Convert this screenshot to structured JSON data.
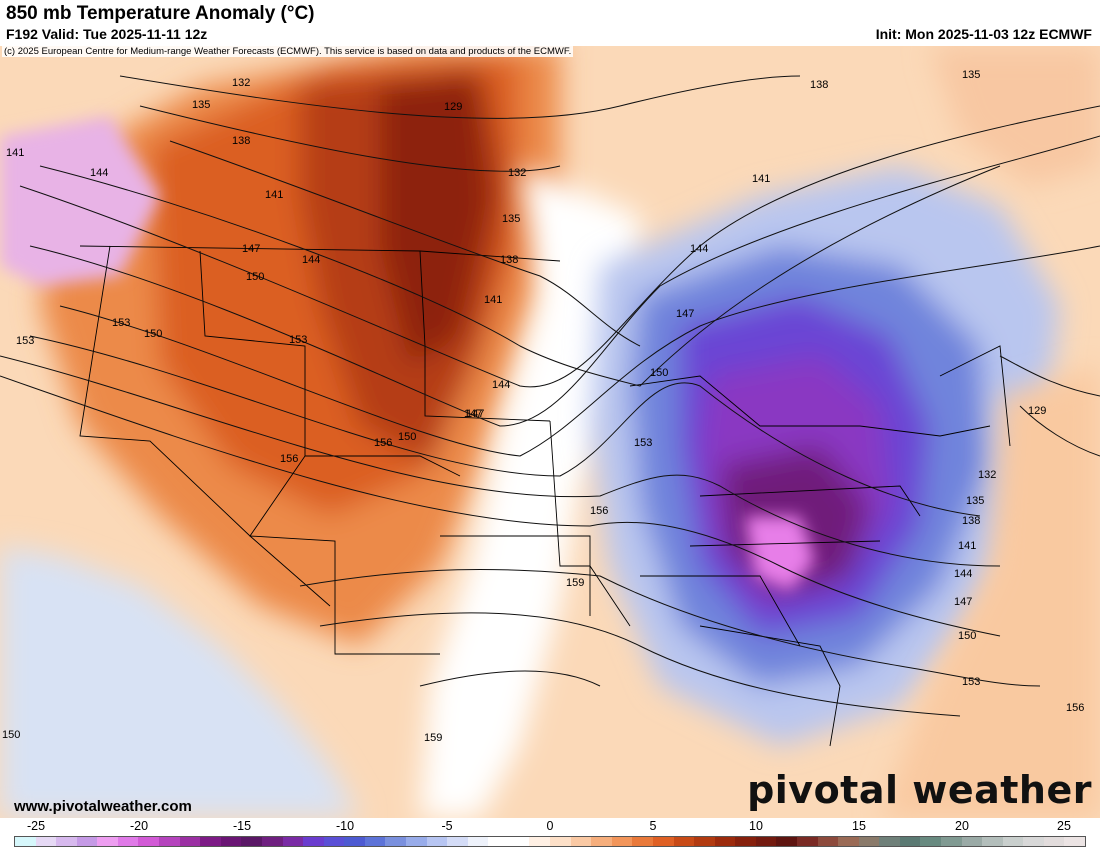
{
  "header": {
    "title": "850 mb Temperature Anomaly (°C)",
    "valid": "F192 Valid: Tue 2025-11-11 12z",
    "init": "Init: Mon 2025-11-03 12z ECMWF",
    "copyright": "(c) 2025 European Centre for Medium-range Weather Forecasts (ECMWF). This service is based on data and products of the ECMWF."
  },
  "footer": {
    "website": "www.pivotalweather.com",
    "brand": "pivotal weather"
  },
  "colorbar": {
    "tick_labels": [
      "-25",
      "-20",
      "-15",
      "-10",
      "-5",
      "0",
      "5",
      "10",
      "15",
      "20",
      "25"
    ],
    "colors": [
      "#d6f7fb",
      "#e6d9f5",
      "#d7b9ee",
      "#c59ae6",
      "#ee9ef1",
      "#e07ae8",
      "#d25ad6",
      "#b543bd",
      "#9b2fa3",
      "#7d1b86",
      "#6a1574",
      "#5a1766",
      "#6f1f80",
      "#7a2ba5",
      "#6a3ccf",
      "#5a4fd6",
      "#4d5ad2",
      "#5d73d8",
      "#7a90de",
      "#98acea",
      "#b7c5f2",
      "#d4dcf7",
      "#eef2fb",
      "#ffffff",
      "#ffffff",
      "#fff0e4",
      "#fde0c8",
      "#fac9a4",
      "#f6ae7c",
      "#f2955a",
      "#e9793a",
      "#df6024",
      "#c84a16",
      "#b23a10",
      "#9c2a0c",
      "#86200c",
      "#731a0f",
      "#5e1410",
      "#7a2a24",
      "#8d4a3c",
      "#9a6a55",
      "#8a7a6a",
      "#6f8079",
      "#5b7a73",
      "#688a80",
      "#809a92",
      "#9aaaa6",
      "#b3bebb",
      "#c9cfcd",
      "#d8d8d8",
      "#e2dcdc",
      "#ece4e4"
    ]
  },
  "map_labels": {
    "height_contours": [
      "129",
      "132",
      "135",
      "138",
      "141",
      "144",
      "147",
      "150",
      "153",
      "156",
      "159"
    ],
    "placed": [
      {
        "t": "132"
      },
      {
        "t": "135"
      },
      {
        "t": "138"
      },
      {
        "t": "141"
      },
      {
        "t": "144"
      },
      {
        "t": "129"
      },
      {
        "t": "132"
      },
      {
        "t": "135"
      },
      {
        "t": "138"
      },
      {
        "t": "141"
      },
      {
        "t": "147"
      },
      {
        "t": "150"
      },
      {
        "t": "144"
      },
      {
        "t": "153"
      },
      {
        "t": "153"
      },
      {
        "t": "141"
      },
      {
        "t": "147"
      },
      {
        "t": "150"
      },
      {
        "t": "156"
      },
      {
        "t": "150"
      },
      {
        "t": "156"
      },
      {
        "t": "153"
      },
      {
        "t": "144"
      },
      {
        "t": "147"
      },
      {
        "t": "150"
      },
      {
        "t": "153"
      },
      {
        "t": "156"
      },
      {
        "t": "159"
      },
      {
        "t": "138"
      },
      {
        "t": "135"
      },
      {
        "t": "141"
      },
      {
        "t": "144"
      },
      {
        "t": "147"
      },
      {
        "t": "129"
      },
      {
        "t": "132"
      },
      {
        "t": "135"
      },
      {
        "t": "138"
      },
      {
        "t": "141"
      },
      {
        "t": "144"
      },
      {
        "t": "147"
      },
      {
        "t": "150"
      },
      {
        "t": "153"
      },
      {
        "t": "156"
      },
      {
        "t": "150"
      },
      {
        "t": "159"
      }
    ]
  }
}
